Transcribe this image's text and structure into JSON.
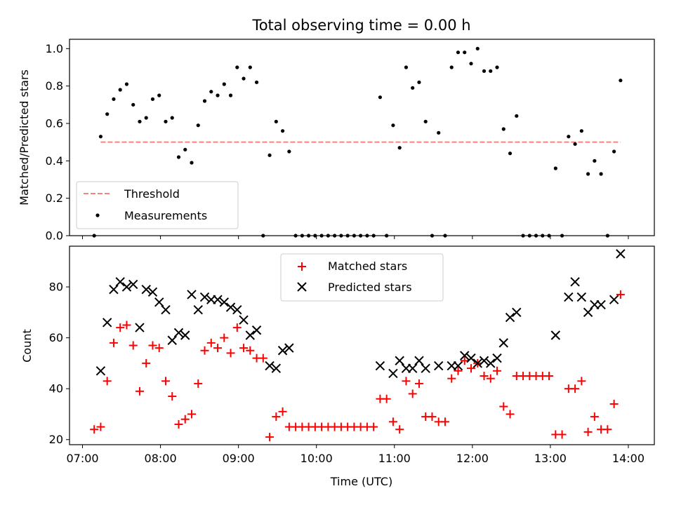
{
  "chart_data": [
    {
      "type": "scatter",
      "title": "Total observing time = 0.00 h",
      "xlabel": "",
      "ylabel": "Matched/Predicted stars",
      "xlim": [
        "06:50",
        "14:20"
      ],
      "ylim": [
        0.0,
        1.05
      ],
      "x_ticks": [
        "07:00",
        "08:00",
        "09:00",
        "10:00",
        "11:00",
        "12:00",
        "13:00",
        "14:00"
      ],
      "y_ticks": [
        "0.0",
        "0.2",
        "0.4",
        "0.6",
        "0.8",
        "1.0"
      ],
      "legend_position": "lower-left",
      "series": [
        {
          "name": "Threshold",
          "style": "dashed-line",
          "color": "#ff7f7f",
          "points": [
            [
              "07:14",
              0.5
            ],
            [
              "13:54",
              0.5
            ]
          ]
        },
        {
          "name": "Measurements",
          "style": "dot",
          "color": "#000000",
          "points": [
            [
              "07:09",
              0.0
            ],
            [
              "07:14",
              0.53
            ],
            [
              "07:19",
              0.65
            ],
            [
              "07:24",
              0.73
            ],
            [
              "07:29",
              0.78
            ],
            [
              "07:34",
              0.81
            ],
            [
              "07:39",
              0.7
            ],
            [
              "07:44",
              0.61
            ],
            [
              "07:49",
              0.63
            ],
            [
              "07:54",
              0.73
            ],
            [
              "07:59",
              0.75
            ],
            [
              "08:04",
              0.61
            ],
            [
              "08:09",
              0.63
            ],
            [
              "08:14",
              0.42
            ],
            [
              "08:19",
              0.46
            ],
            [
              "08:24",
              0.39
            ],
            [
              "08:29",
              0.59
            ],
            [
              "08:34",
              0.72
            ],
            [
              "08:39",
              0.77
            ],
            [
              "08:44",
              0.75
            ],
            [
              "08:49",
              0.81
            ],
            [
              "08:54",
              0.75
            ],
            [
              "08:59",
              0.9
            ],
            [
              "09:04",
              0.84
            ],
            [
              "09:09",
              0.9
            ],
            [
              "09:14",
              0.82
            ],
            [
              "09:19",
              0.0
            ],
            [
              "09:24",
              0.43
            ],
            [
              "09:29",
              0.61
            ],
            [
              "09:34",
              0.56
            ],
            [
              "09:39",
              0.45
            ],
            [
              "09:44",
              0.0
            ],
            [
              "09:49",
              0.0
            ],
            [
              "09:54",
              0.0
            ],
            [
              "09:59",
              0.0
            ],
            [
              "10:04",
              0.0
            ],
            [
              "10:09",
              0.0
            ],
            [
              "10:14",
              0.0
            ],
            [
              "10:19",
              0.0
            ],
            [
              "10:24",
              0.0
            ],
            [
              "10:29",
              0.0
            ],
            [
              "10:34",
              0.0
            ],
            [
              "10:39",
              0.0
            ],
            [
              "10:44",
              0.0
            ],
            [
              "10:49",
              0.74
            ],
            [
              "10:54",
              0.0
            ],
            [
              "10:59",
              0.59
            ],
            [
              "11:04",
              0.47
            ],
            [
              "11:09",
              0.9
            ],
            [
              "11:14",
              0.79
            ],
            [
              "11:19",
              0.82
            ],
            [
              "11:24",
              0.61
            ],
            [
              "11:29",
              0.0
            ],
            [
              "11:34",
              0.55
            ],
            [
              "11:39",
              0.0
            ],
            [
              "11:44",
              0.9
            ],
            [
              "11:49",
              0.98
            ],
            [
              "11:54",
              0.98
            ],
            [
              "11:59",
              0.92
            ],
            [
              "12:04",
              1.0
            ],
            [
              "12:09",
              0.88
            ],
            [
              "12:14",
              0.88
            ],
            [
              "12:19",
              0.9
            ],
            [
              "12:24",
              0.57
            ],
            [
              "12:29",
              0.44
            ],
            [
              "12:34",
              0.64
            ],
            [
              "12:39",
              0.0
            ],
            [
              "12:44",
              0.0
            ],
            [
              "12:49",
              0.0
            ],
            [
              "12:54",
              0.0
            ],
            [
              "12:59",
              0.0
            ],
            [
              "13:04",
              0.36
            ],
            [
              "13:09",
              0.0
            ],
            [
              "13:14",
              0.53
            ],
            [
              "13:19",
              0.49
            ],
            [
              "13:24",
              0.56
            ],
            [
              "13:29",
              0.33
            ],
            [
              "13:34",
              0.4
            ],
            [
              "13:39",
              0.33
            ],
            [
              "13:44",
              0.0
            ],
            [
              "13:49",
              0.45
            ],
            [
              "13:54",
              0.83
            ]
          ]
        }
      ]
    },
    {
      "type": "scatter",
      "title": "",
      "xlabel": "Time (UTC)",
      "ylabel": "Count",
      "xlim": [
        "06:50",
        "14:20"
      ],
      "ylim": [
        18,
        96
      ],
      "x_ticks": [
        "07:00",
        "08:00",
        "09:00",
        "10:00",
        "11:00",
        "12:00",
        "13:00",
        "14:00"
      ],
      "y_ticks": [
        "20",
        "40",
        "60",
        "80"
      ],
      "legend_position": "upper-center",
      "series": [
        {
          "name": "Matched stars",
          "marker": "plus",
          "color": "#ff0000",
          "points": [
            [
              "07:09",
              24
            ],
            [
              "07:14",
              25
            ],
            [
              "07:19",
              43
            ],
            [
              "07:24",
              58
            ],
            [
              "07:29",
              64
            ],
            [
              "07:34",
              65
            ],
            [
              "07:39",
              57
            ],
            [
              "07:44",
              39
            ],
            [
              "07:49",
              50
            ],
            [
              "07:54",
              57
            ],
            [
              "07:59",
              56
            ],
            [
              "08:04",
              43
            ],
            [
              "08:09",
              37
            ],
            [
              "08:14",
              26
            ],
            [
              "08:19",
              28
            ],
            [
              "08:24",
              30
            ],
            [
              "08:29",
              42
            ],
            [
              "08:34",
              55
            ],
            [
              "08:39",
              58
            ],
            [
              "08:44",
              56
            ],
            [
              "08:49",
              60
            ],
            [
              "08:54",
              54
            ],
            [
              "08:59",
              64
            ],
            [
              "09:04",
              56
            ],
            [
              "09:09",
              55
            ],
            [
              "09:14",
              52
            ],
            [
              "09:19",
              52
            ],
            [
              "09:24",
              21
            ],
            [
              "09:29",
              29
            ],
            [
              "09:34",
              31
            ],
            [
              "09:39",
              25
            ],
            [
              "09:44",
              25
            ],
            [
              "09:49",
              25
            ],
            [
              "09:54",
              25
            ],
            [
              "09:59",
              25
            ],
            [
              "10:04",
              25
            ],
            [
              "10:09",
              25
            ],
            [
              "10:14",
              25
            ],
            [
              "10:19",
              25
            ],
            [
              "10:24",
              25
            ],
            [
              "10:29",
              25
            ],
            [
              "10:34",
              25
            ],
            [
              "10:39",
              25
            ],
            [
              "10:44",
              25
            ],
            [
              "10:49",
              36
            ],
            [
              "10:54",
              36
            ],
            [
              "10:59",
              27
            ],
            [
              "11:04",
              24
            ],
            [
              "11:09",
              43
            ],
            [
              "11:14",
              38
            ],
            [
              "11:19",
              42
            ],
            [
              "11:24",
              29
            ],
            [
              "11:29",
              29
            ],
            [
              "11:34",
              27
            ],
            [
              "11:39",
              27
            ],
            [
              "11:44",
              44
            ],
            [
              "11:49",
              47
            ],
            [
              "11:54",
              51
            ],
            [
              "11:59",
              48
            ],
            [
              "12:04",
              50
            ],
            [
              "12:09",
              45
            ],
            [
              "12:14",
              44
            ],
            [
              "12:19",
              47
            ],
            [
              "12:24",
              33
            ],
            [
              "12:29",
              30
            ],
            [
              "12:34",
              45
            ],
            [
              "12:39",
              45
            ],
            [
              "12:44",
              45
            ],
            [
              "12:49",
              45
            ],
            [
              "12:54",
              45
            ],
            [
              "12:59",
              45
            ],
            [
              "13:04",
              22
            ],
            [
              "13:09",
              22
            ],
            [
              "13:14",
              40
            ],
            [
              "13:19",
              40
            ],
            [
              "13:24",
              43
            ],
            [
              "13:29",
              23
            ],
            [
              "13:34",
              29
            ],
            [
              "13:39",
              24
            ],
            [
              "13:44",
              24
            ],
            [
              "13:49",
              34
            ],
            [
              "13:54",
              77
            ]
          ]
        },
        {
          "name": "Predicted stars",
          "marker": "x",
          "color": "#000000",
          "points": [
            [
              "07:14",
              47
            ],
            [
              "07:19",
              66
            ],
            [
              "07:24",
              79
            ],
            [
              "07:29",
              82
            ],
            [
              "07:34",
              80
            ],
            [
              "07:39",
              81
            ],
            [
              "07:44",
              64
            ],
            [
              "07:49",
              79
            ],
            [
              "07:54",
              78
            ],
            [
              "07:59",
              74
            ],
            [
              "08:04",
              71
            ],
            [
              "08:09",
              59
            ],
            [
              "08:14",
              62
            ],
            [
              "08:19",
              61
            ],
            [
              "08:24",
              77
            ],
            [
              "08:29",
              71
            ],
            [
              "08:34",
              76
            ],
            [
              "08:39",
              75
            ],
            [
              "08:44",
              75
            ],
            [
              "08:49",
              74
            ],
            [
              "08:54",
              72
            ],
            [
              "08:59",
              71
            ],
            [
              "09:04",
              67
            ],
            [
              "09:09",
              61
            ],
            [
              "09:14",
              63
            ],
            [
              "09:24",
              49
            ],
            [
              "09:29",
              48
            ],
            [
              "09:34",
              55
            ],
            [
              "09:39",
              56
            ],
            [
              "10:49",
              49
            ],
            [
              "10:59",
              46
            ],
            [
              "11:04",
              51
            ],
            [
              "11:09",
              48
            ],
            [
              "11:14",
              48
            ],
            [
              "11:19",
              51
            ],
            [
              "11:24",
              48
            ],
            [
              "11:34",
              49
            ],
            [
              "11:44",
              49
            ],
            [
              "11:49",
              49
            ],
            [
              "11:54",
              53
            ],
            [
              "11:59",
              52
            ],
            [
              "12:04",
              50
            ],
            [
              "12:09",
              51
            ],
            [
              "12:14",
              50
            ],
            [
              "12:19",
              52
            ],
            [
              "12:24",
              58
            ],
            [
              "12:29",
              68
            ],
            [
              "12:34",
              70
            ],
            [
              "13:04",
              61
            ],
            [
              "13:14",
              76
            ],
            [
              "13:19",
              82
            ],
            [
              "13:24",
              76
            ],
            [
              "13:29",
              70
            ],
            [
              "13:34",
              73
            ],
            [
              "13:39",
              73
            ],
            [
              "13:49",
              75
            ],
            [
              "13:54",
              93
            ]
          ]
        }
      ]
    }
  ]
}
